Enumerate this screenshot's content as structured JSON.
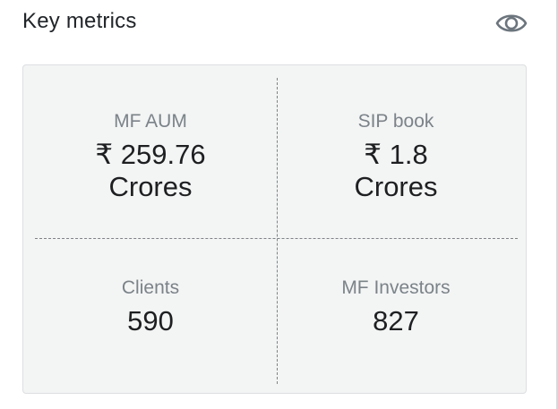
{
  "header": {
    "title": "Key metrics",
    "toggle_icon": "eye-icon"
  },
  "metrics": {
    "mf_aum": {
      "label": "MF AUM",
      "value_line1": "₹ 259.76",
      "value_line2": "Crores"
    },
    "sip_book": {
      "label": "SIP book",
      "value_line1": "₹ 1.8",
      "value_line2": "Crores"
    },
    "clients": {
      "label": "Clients",
      "value": "590"
    },
    "mf_investors": {
      "label": "MF Investors",
      "value": "827"
    }
  },
  "colors": {
    "card_background": "#f3f4f4",
    "label_text": "#7b8389",
    "value_text": "#1d1f21",
    "icon": "#6c757d"
  }
}
